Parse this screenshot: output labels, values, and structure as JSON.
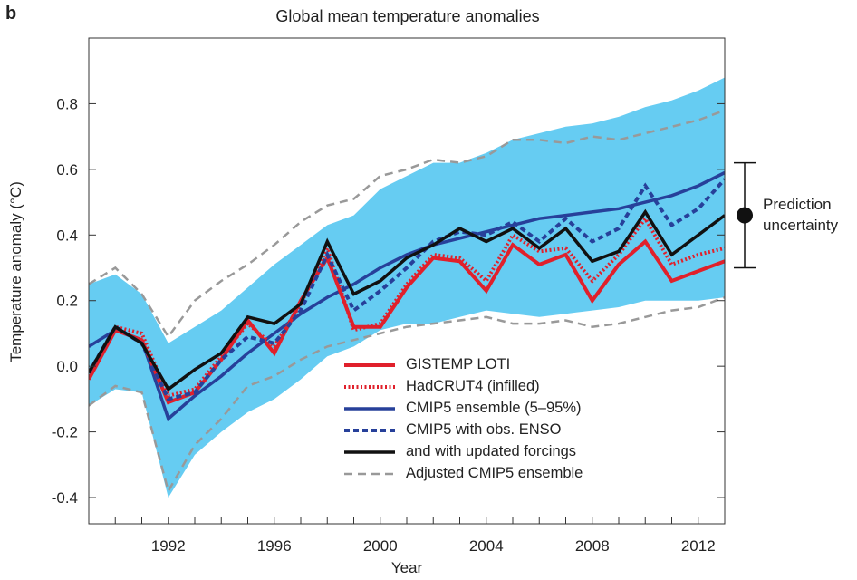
{
  "panel_label": "b",
  "chart_data": {
    "type": "line",
    "title": "Global mean temperature anomalies",
    "xlabel": "Year",
    "ylabel": "Temperature anomaly (°C)",
    "xlim": [
      1989,
      2013
    ],
    "ylim": [
      -0.48,
      1.0
    ],
    "xticks": [
      1992,
      1996,
      2000,
      2004,
      2008,
      2012
    ],
    "yticks": [
      -0.4,
      -0.2,
      0.0,
      0.2,
      0.4,
      0.6,
      0.8
    ],
    "ytick_labels": [
      "-0.4",
      "-0.2",
      "0.0",
      "0.2",
      "0.4",
      "0.6",
      "0.8"
    ],
    "x": [
      1989,
      1990,
      1991,
      1992,
      1993,
      1994,
      1995,
      1996,
      1997,
      1998,
      1999,
      2000,
      2001,
      2002,
      2003,
      2004,
      2005,
      2006,
      2007,
      2008,
      2009,
      2010,
      2011,
      2012,
      2013
    ],
    "band": {
      "name": "CMIP5 ensemble (5–95%) range",
      "color": "#66ccf2",
      "upper": [
        0.25,
        0.28,
        0.22,
        0.07,
        0.12,
        0.17,
        0.24,
        0.31,
        0.37,
        0.43,
        0.46,
        0.54,
        0.58,
        0.62,
        0.62,
        0.65,
        0.69,
        0.71,
        0.73,
        0.74,
        0.76,
        0.79,
        0.81,
        0.84,
        0.88
      ],
      "lower": [
        -0.12,
        -0.07,
        -0.08,
        -0.4,
        -0.27,
        -0.2,
        -0.14,
        -0.1,
        -0.04,
        0.03,
        0.06,
        0.11,
        0.13,
        0.13,
        0.15,
        0.17,
        0.16,
        0.15,
        0.16,
        0.17,
        0.18,
        0.2,
        0.2,
        0.2,
        0.21
      ]
    },
    "series": [
      {
        "name": "GISTEMP LOTI",
        "color": "#e0202b",
        "dash": "solid",
        "width": 4,
        "values": [
          -0.04,
          0.11,
          0.08,
          -0.11,
          -0.08,
          0.02,
          0.14,
          0.04,
          0.2,
          0.33,
          0.12,
          0.12,
          0.24,
          0.33,
          0.32,
          0.23,
          0.37,
          0.31,
          0.34,
          0.2,
          0.31,
          0.38,
          0.26,
          0.29,
          0.32
        ]
      },
      {
        "name": "HadCRUT4 (infilled)",
        "color": "#e0202b",
        "dash": "dotted",
        "width": 4,
        "values": [
          -0.03,
          0.12,
          0.1,
          -0.09,
          -0.07,
          0.03,
          0.13,
          0.06,
          0.19,
          0.36,
          0.11,
          0.13,
          0.25,
          0.34,
          0.33,
          0.26,
          0.4,
          0.35,
          0.36,
          0.26,
          0.34,
          0.45,
          0.31,
          0.34,
          0.36
        ]
      },
      {
        "name": "CMIP5 ensemble (5–95%)",
        "color": "#27409a",
        "dash": "solid",
        "width": 3.5,
        "values": [
          0.06,
          0.11,
          0.08,
          -0.16,
          -0.09,
          -0.03,
          0.04,
          0.1,
          0.16,
          0.21,
          0.25,
          0.3,
          0.34,
          0.37,
          0.39,
          0.41,
          0.43,
          0.45,
          0.46,
          0.47,
          0.48,
          0.5,
          0.52,
          0.55,
          0.59
        ]
      },
      {
        "name": "CMIP5 with obs. ENSO",
        "color": "#27409a",
        "dash": "dashed",
        "width": 4,
        "values": [
          -0.02,
          0.12,
          0.07,
          -0.1,
          -0.08,
          0.02,
          0.09,
          0.07,
          0.17,
          0.34,
          0.17,
          0.23,
          0.3,
          0.38,
          0.41,
          0.4,
          0.44,
          0.38,
          0.45,
          0.38,
          0.42,
          0.55,
          0.43,
          0.48,
          0.57
        ]
      },
      {
        "name": "and with updated forcings",
        "color": "#111111",
        "dash": "solid",
        "width": 3.5,
        "values": [
          -0.02,
          0.12,
          0.07,
          -0.07,
          -0.01,
          0.04,
          0.15,
          0.13,
          0.19,
          0.38,
          0.22,
          0.26,
          0.33,
          0.37,
          0.42,
          0.38,
          0.42,
          0.36,
          0.42,
          0.32,
          0.35,
          0.47,
          0.34,
          0.4,
          0.46
        ]
      },
      {
        "name": "Adjusted CMIP5 ensemble",
        "color": "#999999",
        "dash": "dashed-gray",
        "width": 3,
        "upper": [
          0.25,
          0.3,
          0.22,
          0.09,
          0.2,
          0.26,
          0.31,
          0.37,
          0.44,
          0.49,
          0.51,
          0.58,
          0.6,
          0.63,
          0.62,
          0.64,
          0.69,
          0.69,
          0.68,
          0.7,
          0.69,
          0.71,
          0.73,
          0.75,
          0.78
        ],
        "lower": [
          -0.12,
          -0.06,
          -0.08,
          -0.38,
          -0.24,
          -0.16,
          -0.06,
          -0.03,
          0.02,
          0.06,
          0.08,
          0.1,
          0.12,
          0.13,
          0.14,
          0.15,
          0.13,
          0.13,
          0.14,
          0.12,
          0.13,
          0.15,
          0.17,
          0.18,
          0.21
        ]
      }
    ],
    "prediction_uncertainty": {
      "label_lines": [
        "Prediction",
        "uncertainty"
      ],
      "center": 0.46,
      "low": 0.3,
      "high": 0.62
    },
    "legend_position": "bottom-center",
    "grid": false
  }
}
